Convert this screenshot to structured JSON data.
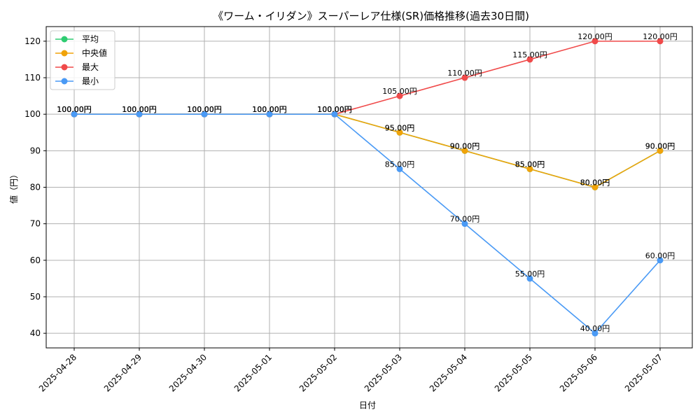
{
  "chart_data": {
    "type": "line",
    "title": "《ワーム・イリダン》スーパーレア仕様(SR)価格推移(過去30日間)",
    "xlabel": "日付",
    "ylabel": "値（円）",
    "categories": [
      "2025-04-28",
      "2025-04-29",
      "2025-04-30",
      "2025-05-01",
      "2025-05-02",
      "2025-05-03",
      "2025-05-04",
      "2025-05-05",
      "2025-05-06",
      "2025-05-07"
    ],
    "ylim": [
      36,
      124
    ],
    "yticks": [
      40,
      50,
      60,
      70,
      80,
      90,
      100,
      110,
      120
    ],
    "grid": true,
    "legend_position": "top-left",
    "value_suffix": "円",
    "series": [
      {
        "name": "平均",
        "color": "#2ecc71",
        "values": [
          100,
          100,
          100,
          100,
          100,
          95,
          90,
          85,
          80,
          90
        ]
      },
      {
        "name": "中央値",
        "color": "#f0a30a",
        "values": [
          100,
          100,
          100,
          100,
          100,
          95,
          90,
          85,
          80,
          90
        ]
      },
      {
        "name": "最大",
        "color": "#f04a4a",
        "values": [
          100,
          100,
          100,
          100,
          100,
          105,
          110,
          115,
          120,
          120
        ]
      },
      {
        "name": "最小",
        "color": "#4a9af5",
        "values": [
          100,
          100,
          100,
          100,
          100,
          85,
          70,
          55,
          40,
          60
        ]
      }
    ]
  }
}
